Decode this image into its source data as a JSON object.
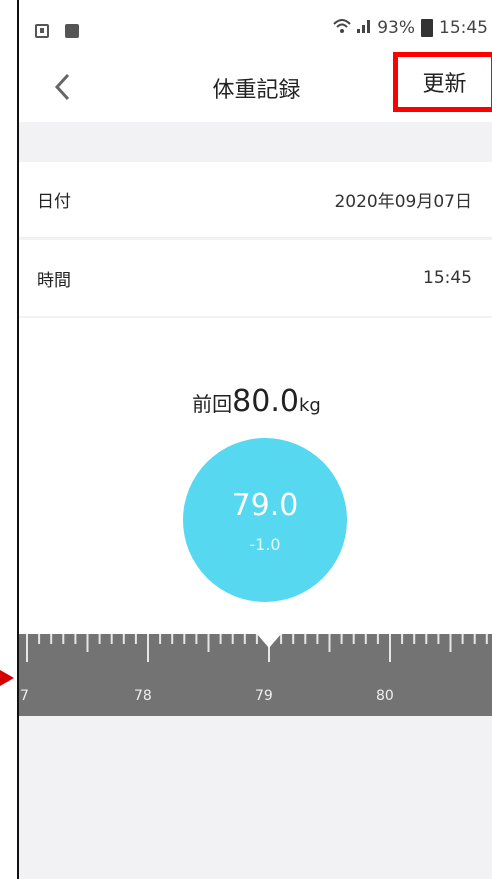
{
  "status_bar": {
    "battery_percent": "93%",
    "clock": "15:45",
    "left_icons": [
      "download-icon",
      "image-icon"
    ],
    "right_icons": [
      "wifi-icon",
      "signal-icon",
      "battery-icon"
    ]
  },
  "header": {
    "title": "体重記録",
    "back_icon": "chevron-left-icon",
    "update_label": "更新"
  },
  "form": {
    "date_label": "日付",
    "date_value": "2020年09月07日",
    "time_label": "時間",
    "time_value": "15:45"
  },
  "weight": {
    "previous_label": "前回",
    "previous_value": "80.0",
    "unit": "kg",
    "current_value": "79.0",
    "difference": "-1.0"
  },
  "ruler": {
    "labels": [
      "7",
      "78",
      "79",
      "80"
    ],
    "selected": "79"
  },
  "colors": {
    "accent_circle": "#55d8f0",
    "ruler_bg": "#737373",
    "highlight_box": "#ff0000",
    "arrow_mark": "#d40000"
  }
}
